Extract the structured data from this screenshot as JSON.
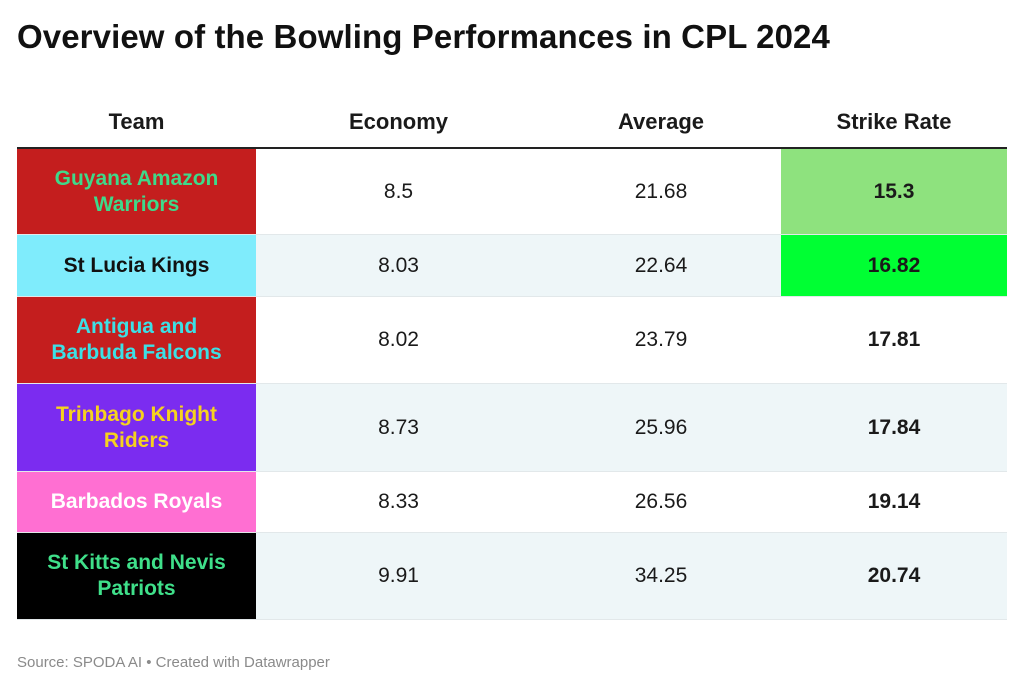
{
  "title": "Overview of the Bowling Performances in CPL 2024",
  "footer": "Source: SPODA AI • Created with Datawrapper",
  "chart_data": {
    "type": "table",
    "columns": [
      "Team",
      "Economy",
      "Average",
      "Strike Rate"
    ],
    "rows": [
      {
        "team": "Guyana Amazon Warriors",
        "economy": "8.5",
        "average": "21.68",
        "strike_rate": "15.3",
        "team_bg": "#c41e1e",
        "team_color": "#3fd98a",
        "sr_bg": "#8ee27e"
      },
      {
        "team": "St Lucia Kings",
        "economy": "8.03",
        "average": "22.64",
        "strike_rate": "16.82",
        "team_bg": "#7fecfc",
        "team_color": "#111111",
        "sr_bg": "#00ff33"
      },
      {
        "team": "Antigua and Barbuda Falcons",
        "economy": "8.02",
        "average": "23.79",
        "strike_rate": "17.81",
        "team_bg": "#c41e1e",
        "team_color": "#3ce0e6",
        "sr_bg": ""
      },
      {
        "team": "Trinbago Knight Riders",
        "economy": "8.73",
        "average": "25.96",
        "strike_rate": "17.84",
        "team_bg": "#7b2cf0",
        "team_color": "#f6d21e",
        "sr_bg": ""
      },
      {
        "team": "Barbados Royals",
        "economy": "8.33",
        "average": "26.56",
        "strike_rate": "19.14",
        "team_bg": "#ff6fd2",
        "team_color": "#ffffff",
        "sr_bg": ""
      },
      {
        "team": "St Kitts and Nevis Patriots",
        "economy": "9.91",
        "average": "34.25",
        "strike_rate": "20.74",
        "team_bg": "#000000",
        "team_color": "#3fe08a",
        "sr_bg": ""
      }
    ]
  }
}
